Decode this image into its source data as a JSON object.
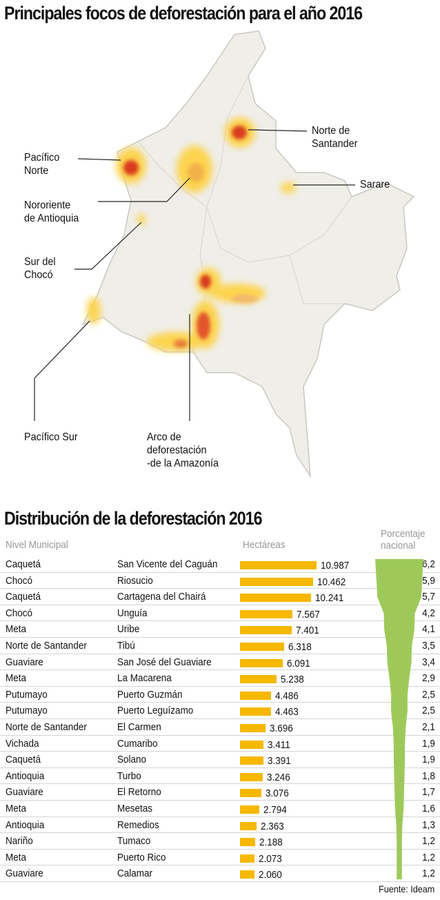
{
  "title": "Principales focos de deforestación para el año 2016",
  "map_labels": {
    "pacifico_norte": "Pacífico\nNorte",
    "nororiente": "Nororiente\nde Antioquia",
    "sur_choco": "Sur del\nChocó",
    "pacifico_sur": "Pacífico Sur",
    "arco": "Arco de\ndeforestación\n-de la Amazonía",
    "norte_santander": "Norte de\nSantander",
    "sarare": "Sarare"
  },
  "colors": {
    "bar": "#f6b800",
    "funnel": "#9ec95a",
    "map_fill": "#efeee9",
    "hot_low": "#fdd44f",
    "hot_high": "#d93a1f"
  },
  "chart_data": {
    "type": "table",
    "title": "Distribución de la deforestación 2016",
    "headers": {
      "level": "Nivel Municipal",
      "hectares": "Hectáreas",
      "pct": "Porcentaje\nnacional"
    },
    "rows": [
      {
        "dept": "Caquetá",
        "mun": "San Vicente del Caguán",
        "ha": 10987,
        "ha_label": "10.987",
        "pct": 6.2,
        "pct_label": "6,2"
      },
      {
        "dept": "Chocó",
        "mun": "Riosucio",
        "ha": 10462,
        "ha_label": "10.462",
        "pct": 5.9,
        "pct_label": "5,9"
      },
      {
        "dept": "Caquetá",
        "mun": "Cartagena del Chairá",
        "ha": 10241,
        "ha_label": "10.241",
        "pct": 5.7,
        "pct_label": "5,7"
      },
      {
        "dept": "Chocó",
        "mun": "Unguía",
        "ha": 7567,
        "ha_label": "7.567",
        "pct": 4.2,
        "pct_label": "4,2"
      },
      {
        "dept": "Meta",
        "mun": "Uribe",
        "ha": 7401,
        "ha_label": "7.401",
        "pct": 4.1,
        "pct_label": "4,1"
      },
      {
        "dept": "Norte de Santander",
        "mun": "Tibú",
        "ha": 6318,
        "ha_label": "6.318",
        "pct": 3.5,
        "pct_label": "3,5"
      },
      {
        "dept": "Guaviare",
        "mun": "San José del Guaviare",
        "ha": 6091,
        "ha_label": "6.091",
        "pct": 3.4,
        "pct_label": "3,4"
      },
      {
        "dept": "Meta",
        "mun": "La Macarena",
        "ha": 5238,
        "ha_label": "5.238",
        "pct": 2.9,
        "pct_label": "2,9"
      },
      {
        "dept": "Putumayo",
        "mun": "Puerto Guzmán",
        "ha": 4486,
        "ha_label": "4.486",
        "pct": 2.5,
        "pct_label": "2,5"
      },
      {
        "dept": "Putumayo",
        "mun": "Puerto Leguízamo",
        "ha": 4463,
        "ha_label": "4.463",
        "pct": 2.5,
        "pct_label": "2,5"
      },
      {
        "dept": "Norte de Santander",
        "mun": "El Carmen",
        "ha": 3696,
        "ha_label": "3.696",
        "pct": 2.1,
        "pct_label": "2,1"
      },
      {
        "dept": "Vichada",
        "mun": "Cumaribo",
        "ha": 3411,
        "ha_label": "3.411",
        "pct": 1.9,
        "pct_label": "1,9"
      },
      {
        "dept": "Caquetá",
        "mun": "Solano",
        "ha": 3391,
        "ha_label": "3.391",
        "pct": 1.9,
        "pct_label": "1,9"
      },
      {
        "dept": "Antioquia",
        "mun": "Turbo",
        "ha": 3246,
        "ha_label": "3.246",
        "pct": 1.8,
        "pct_label": "1,8"
      },
      {
        "dept": "Guaviare",
        "mun": "El Retorno",
        "ha": 3076,
        "ha_label": "3.076",
        "pct": 1.7,
        "pct_label": "1,7"
      },
      {
        "dept": "Meta",
        "mun": "Mesetas",
        "ha": 2794,
        "ha_label": "2.794",
        "pct": 1.6,
        "pct_label": "1,6"
      },
      {
        "dept": "Antioquia",
        "mun": "Remedios",
        "ha": 2363,
        "ha_label": "2.363",
        "pct": 1.3,
        "pct_label": "1,3"
      },
      {
        "dept": "Nariño",
        "mun": "Tumaco",
        "ha": 2188,
        "ha_label": "2.188",
        "pct": 1.2,
        "pct_label": "1,2"
      },
      {
        "dept": "Meta",
        "mun": "Puerto Rico",
        "ha": 2073,
        "ha_label": "2.073",
        "pct": 1.2,
        "pct_label": "1,2"
      },
      {
        "dept": "Guaviare",
        "mun": "Calamar",
        "ha": 2060,
        "ha_label": "2.060",
        "pct": 1.2,
        "pct_label": "1,2"
      }
    ]
  },
  "source": "Fuente: Ideam"
}
